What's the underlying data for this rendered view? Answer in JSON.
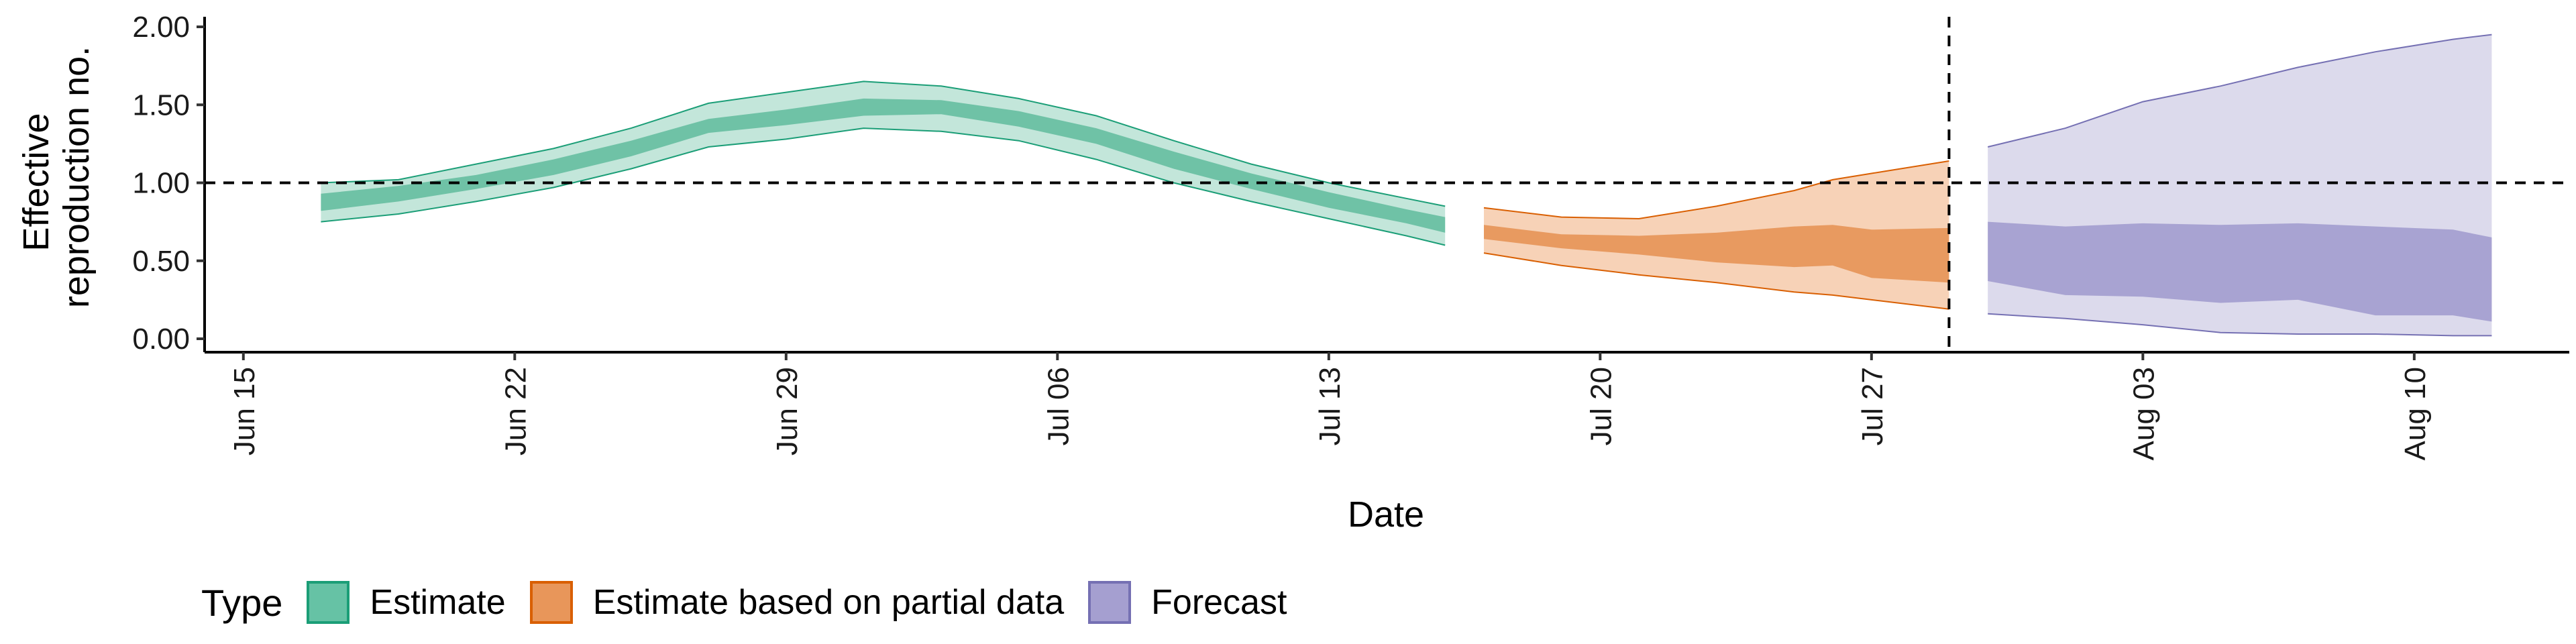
{
  "chart_data": {
    "type": "area",
    "xlabel": "Date",
    "ylabel_lines": [
      "Effective",
      "reproduction no."
    ],
    "ylim": [
      0,
      2
    ],
    "yticks": [
      0,
      0.5,
      1,
      1.5,
      2
    ],
    "ytick_labels": [
      "0.00",
      "0.50",
      "1.00",
      "1.50",
      "2.00"
    ],
    "xlim": [
      "2020-06-14",
      "2020-08-14"
    ],
    "xticks": [
      "2020-06-15",
      "2020-06-22",
      "2020-06-29",
      "2020-07-06",
      "2020-07-13",
      "2020-07-20",
      "2020-07-27",
      "2020-08-03",
      "2020-08-10"
    ],
    "xtick_labels": [
      "Jun 15",
      "Jun 22",
      "Jun 29",
      "Jul 06",
      "Jul 13",
      "Jul 20",
      "Jul 27",
      "Aug 03",
      "Aug 10"
    ],
    "hline": 1.0,
    "vline": "2020-07-29",
    "grid": false,
    "legend": {
      "title": "Type",
      "placement": "bottom",
      "items": [
        {
          "label": "Estimate",
          "fill": "#66C2A5",
          "border": "#1B9E77"
        },
        {
          "label": "Estimate based on partial data",
          "fill": "#E8965A",
          "border": "#D95F02"
        },
        {
          "label": "Forecast",
          "fill": "#A59FD0",
          "border": "#7570B3"
        }
      ]
    },
    "series": [
      {
        "name": "Estimate",
        "outer_fill": "#C3E6DA",
        "inner_fill": "#6FC2A6",
        "line_color": "#1B9E77",
        "dates": [
          "2020-06-17",
          "2020-06-19",
          "2020-06-21",
          "2020-06-23",
          "2020-06-25",
          "2020-06-27",
          "2020-06-29",
          "2020-07-01",
          "2020-07-03",
          "2020-07-05",
          "2020-07-07",
          "2020-07-09",
          "2020-07-11",
          "2020-07-13",
          "2020-07-15",
          "2020-07-16"
        ],
        "lower90": [
          0.75,
          0.8,
          0.88,
          0.97,
          1.09,
          1.23,
          1.28,
          1.35,
          1.33,
          1.27,
          1.15,
          1.0,
          0.88,
          0.77,
          0.66,
          0.6
        ],
        "lower50": [
          0.82,
          0.88,
          0.96,
          1.05,
          1.17,
          1.32,
          1.37,
          1.43,
          1.44,
          1.36,
          1.25,
          1.09,
          0.96,
          0.84,
          0.74,
          0.68
        ],
        "upper50": [
          0.93,
          0.98,
          1.05,
          1.15,
          1.27,
          1.41,
          1.47,
          1.54,
          1.53,
          1.46,
          1.35,
          1.2,
          1.06,
          0.94,
          0.83,
          0.78
        ],
        "upper90": [
          1.0,
          1.02,
          1.12,
          1.22,
          1.35,
          1.51,
          1.58,
          1.65,
          1.62,
          1.54,
          1.43,
          1.27,
          1.12,
          1.0,
          0.9,
          0.85
        ]
      },
      {
        "name": "Estimate based on partial data",
        "outer_fill": "#F7D2B7",
        "inner_fill": "#E89A60",
        "line_color": "#D95F02",
        "dates": [
          "2020-07-17",
          "2020-07-19",
          "2020-07-21",
          "2020-07-23",
          "2020-07-25",
          "2020-07-26",
          "2020-07-27",
          "2020-07-29"
        ],
        "lower90": [
          0.55,
          0.47,
          0.41,
          0.36,
          0.3,
          0.28,
          0.25,
          0.19
        ],
        "lower50": [
          0.64,
          0.58,
          0.54,
          0.49,
          0.46,
          0.47,
          0.39,
          0.36
        ],
        "upper50": [
          0.73,
          0.67,
          0.66,
          0.68,
          0.72,
          0.73,
          0.7,
          0.71
        ],
        "upper90": [
          0.84,
          0.78,
          0.77,
          0.85,
          0.95,
          1.02,
          1.06,
          1.14
        ]
      },
      {
        "name": "Forecast",
        "outer_fill": "#DCDAEC",
        "inner_fill": "#A8A3D2",
        "line_color": "#7570B3",
        "dates": [
          "2020-07-30",
          "2020-08-01",
          "2020-08-03",
          "2020-08-05",
          "2020-08-07",
          "2020-08-09",
          "2020-08-11",
          "2020-08-12"
        ],
        "lower90": [
          0.16,
          0.13,
          0.09,
          0.04,
          0.03,
          0.03,
          0.02,
          0.02
        ],
        "lower50": [
          0.37,
          0.28,
          0.27,
          0.23,
          0.25,
          0.15,
          0.15,
          0.11
        ],
        "upper50": [
          0.75,
          0.72,
          0.74,
          0.73,
          0.74,
          0.72,
          0.7,
          0.65
        ],
        "upper90": [
          1.23,
          1.35,
          1.52,
          1.62,
          1.74,
          1.84,
          1.92,
          1.95
        ]
      }
    ]
  }
}
